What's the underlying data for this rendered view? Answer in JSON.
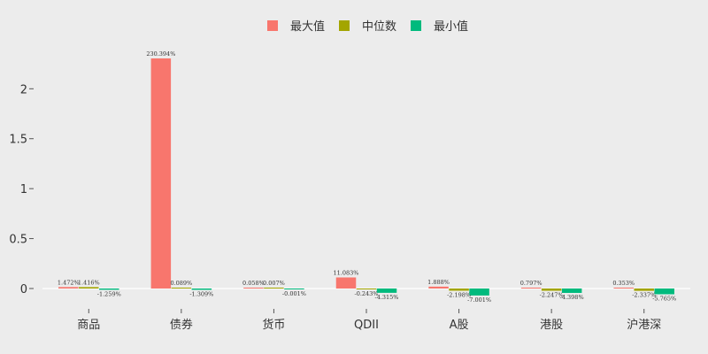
{
  "chart_data": {
    "type": "bar",
    "categories": [
      "商品",
      "债券",
      "货币",
      "QDII",
      "A股",
      "港股",
      "沪港深"
    ],
    "series": [
      {
        "name": "最大值",
        "color": "#f8766d",
        "values": [
          0.01472,
          2.30394,
          0.00058,
          0.11083,
          0.01888,
          0.00797,
          0.00353
        ],
        "labels": [
          "1.472%",
          "230.394%",
          "0.058%",
          "11.083%",
          "1.888%",
          "0.797%",
          "0.353%"
        ]
      },
      {
        "name": "中位数",
        "color": "#a3a500",
        "values": [
          0.01416,
          0.00089,
          7e-05,
          -0.00243,
          -0.02198,
          -0.02247,
          -0.02337
        ],
        "labels": [
          "1.416%",
          "0.089%",
          "0.007%",
          "-0.243%",
          "-2.198%",
          "-2.247%",
          "-2.337%"
        ]
      },
      {
        "name": "最小值",
        "color": "#00ba7d",
        "values": [
          -0.01259,
          -0.01309,
          -1e-05,
          -0.04315,
          -0.07001,
          -0.04398,
          -0.05765
        ],
        "labels": [
          "-1.259%",
          "-1.309%",
          "-0.001%",
          "-4.315%",
          "-7.001%",
          "-4.398%",
          "-5.765%"
        ]
      }
    ],
    "yticks": [
      0,
      0.5,
      1,
      1.5,
      2
    ],
    "ytick_labels": [
      "0",
      "0.5",
      "1",
      "1.5",
      "2"
    ],
    "ylim": [
      -0.1,
      2.45
    ],
    "legend_position": "top-center",
    "grid": false
  }
}
